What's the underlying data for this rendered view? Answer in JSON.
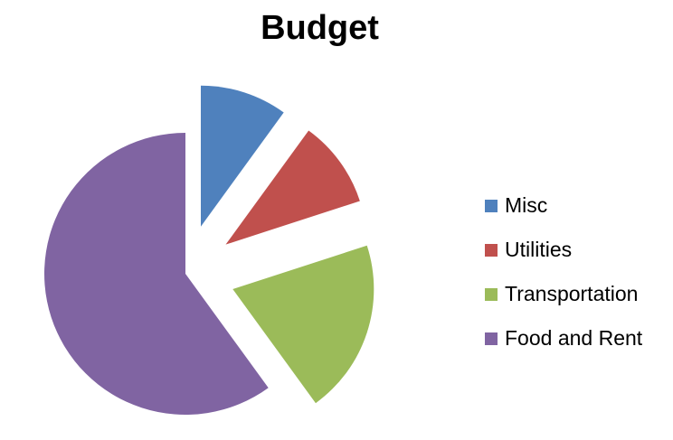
{
  "chart_data": {
    "type": "pie",
    "title": "Budget",
    "categories": [
      "Misc",
      "Utilities",
      "Transportation",
      "Food and Rent"
    ],
    "values": [
      10,
      10,
      20,
      60
    ],
    "colors": [
      "#4F81BD",
      "#C0504D",
      "#9BBB59",
      "#8064A2"
    ],
    "exploded": [
      true,
      true,
      true,
      false
    ],
    "legend": "right"
  }
}
